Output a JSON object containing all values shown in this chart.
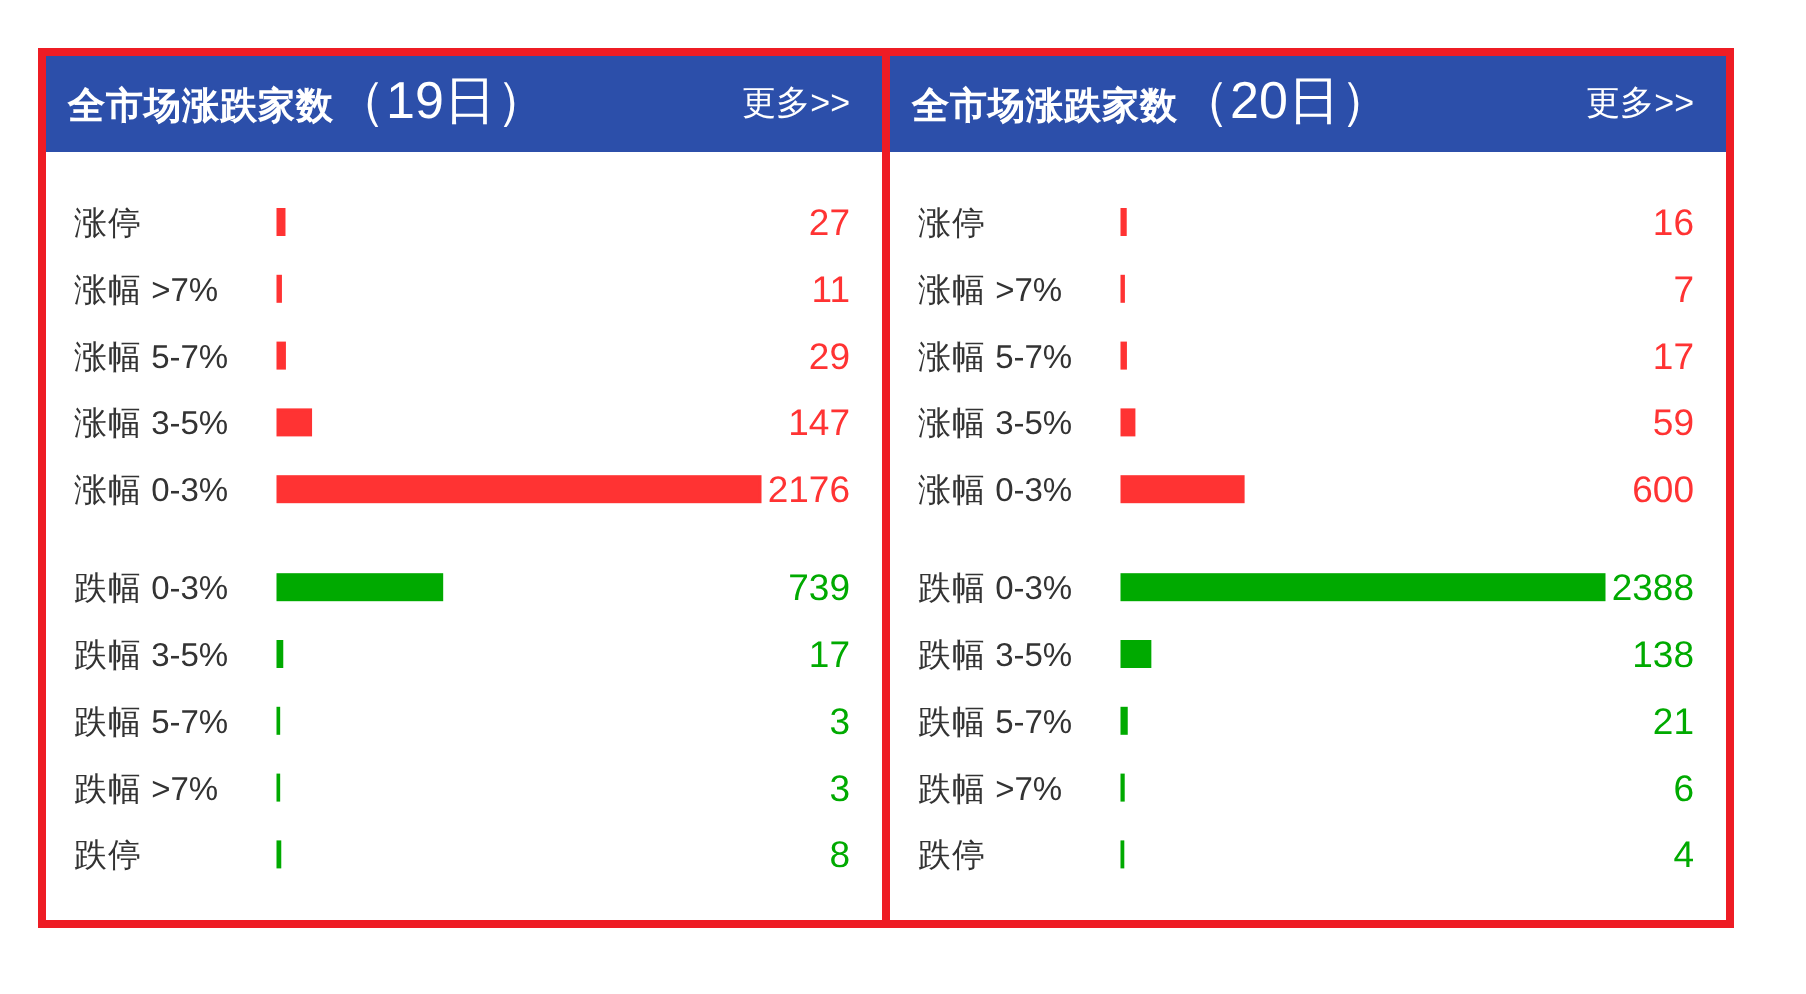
{
  "chart_data": [
    {
      "type": "bar",
      "orientation": "horizontal",
      "title": "**全市场涨跌家数**（19日）",
      "categories": [
        "涨停",
        "涨幅 >7%",
        "涨幅 5-7%",
        "涨幅 3-5%",
        "涨幅 0-3%",
        "跌幅 0-3%",
        "跌幅 3-5%",
        "跌幅 5-7%",
        "跌幅 >7%",
        "跌停"
      ],
      "values": [
        27,
        11,
        29,
        147,
        2176,
        739,
        17,
        3,
        3,
        8
      ],
      "colors": [
        "#ff3333",
        "#ff3333",
        "#ff3333",
        "#ff3333",
        "#ff3333",
        "#00aa00",
        "#00aa00",
        "#00aa00",
        "#00aa00",
        "#00aa00"
      ],
      "data_labels": true,
      "annotations": [
        "更多>>"
      ]
    },
    {
      "type": "bar",
      "orientation": "horizontal",
      "title": "**全市场涨跌家数**（20日）",
      "categories": [
        "涨停",
        "涨幅 >7%",
        "涨幅 5-7%",
        "涨幅 3-5%",
        "涨幅 0-3%",
        "跌幅 0-3%",
        "跌幅 3-5%",
        "跌幅 5-7%",
        "跌幅 >7%",
        "跌停"
      ],
      "values": [
        16,
        7,
        17,
        59,
        600,
        2388,
        138,
        21,
        6,
        4
      ],
      "colors": [
        "#ff3333",
        "#ff3333",
        "#ff3333",
        "#ff3333",
        "#ff3333",
        "#00aa00",
        "#00aa00",
        "#00aa00",
        "#00aa00",
        "#00aa00"
      ],
      "data_labels": true,
      "annotations": [
        "更多>>"
      ]
    }
  ]
}
